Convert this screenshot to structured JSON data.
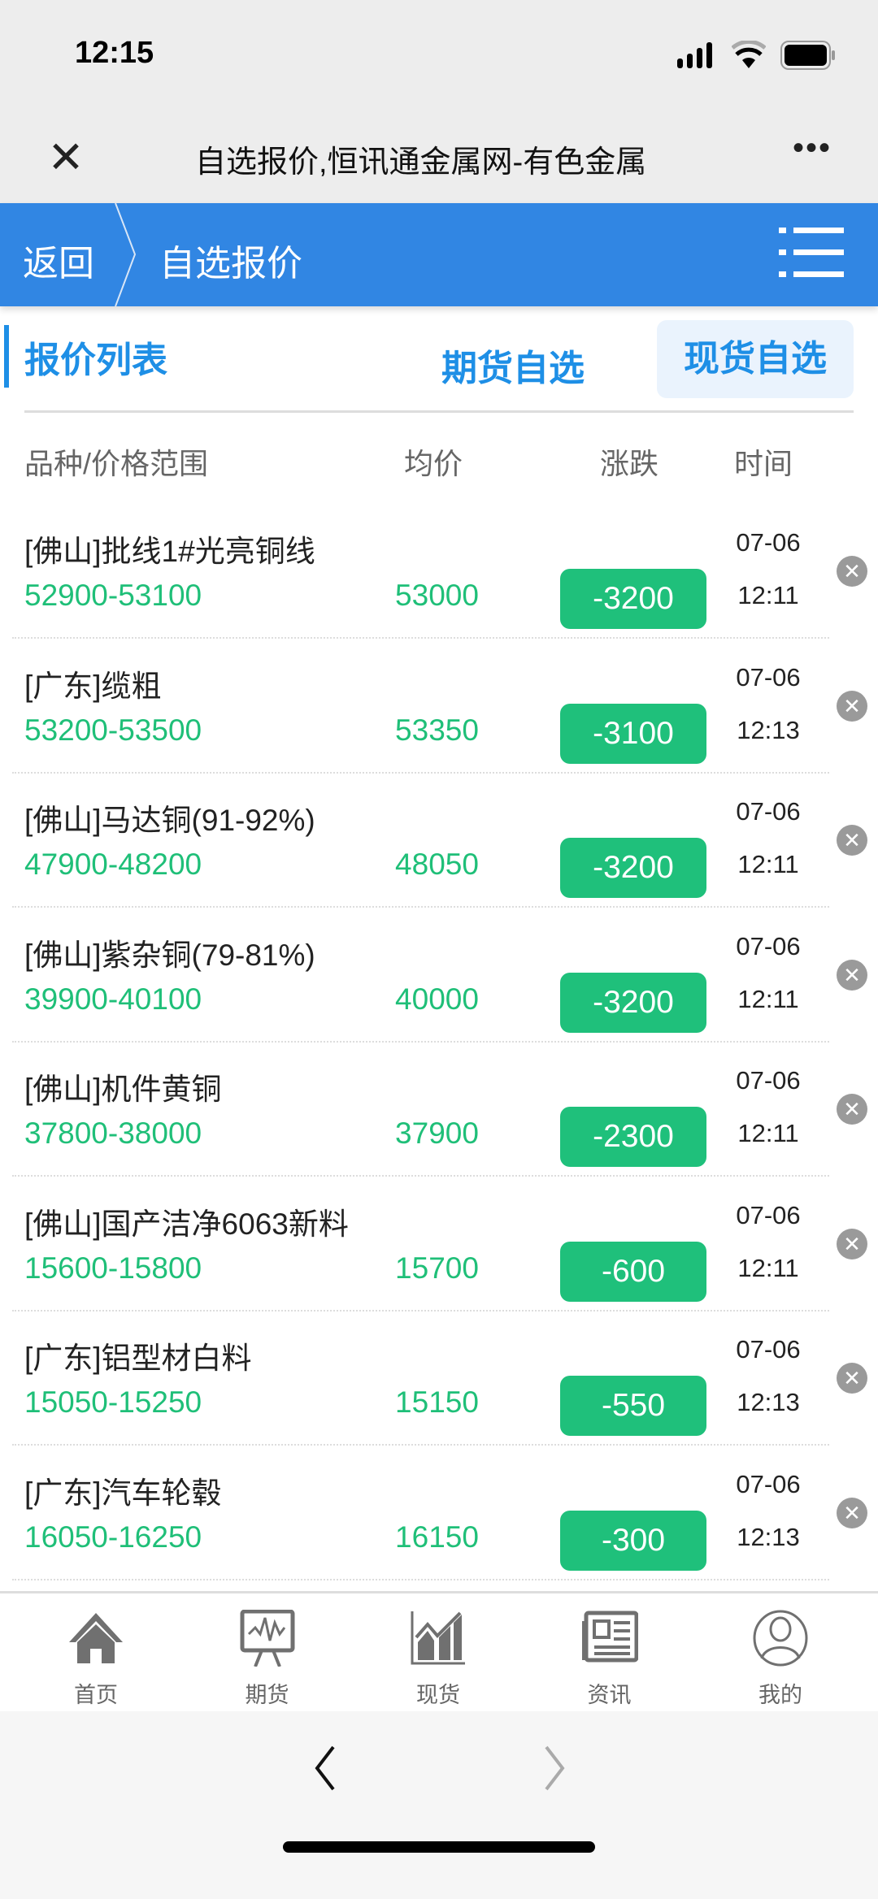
{
  "status_bar": {
    "time": "12:15"
  },
  "browser": {
    "title": "自选报价,恒讯通金属网-有色金属",
    "more": "•••"
  },
  "header": {
    "back_label": "返回",
    "breadcrumb": "自选报价",
    "accent": "#3186e3"
  },
  "section": {
    "title": "报价列表",
    "tabs": [
      {
        "label": "期货自选",
        "active": false
      },
      {
        "label": "现货自选",
        "active": true
      }
    ]
  },
  "columns": {
    "name": "品种/价格范围",
    "avg": "均价",
    "change": "涨跌",
    "time": "时间"
  },
  "rows": [
    {
      "name": "[佛山]批线1#光亮铜线",
      "range": "52900-53100",
      "avg": "53000",
      "change": "-3200",
      "date": "07-06",
      "time": "12:11"
    },
    {
      "name": "[广东]缆粗",
      "range": "53200-53500",
      "avg": "53350",
      "change": "-3100",
      "date": "07-06",
      "time": "12:13"
    },
    {
      "name": "[佛山]马达铜(91-92%)",
      "range": "47900-48200",
      "avg": "48050",
      "change": "-3200",
      "date": "07-06",
      "time": "12:11"
    },
    {
      "name": "[佛山]紫杂铜(79-81%)",
      "range": "39900-40100",
      "avg": "40000",
      "change": "-3200",
      "date": "07-06",
      "time": "12:11"
    },
    {
      "name": "[佛山]机件黄铜",
      "range": "37800-38000",
      "avg": "37900",
      "change": "-2300",
      "date": "07-06",
      "time": "12:11"
    },
    {
      "name": "[佛山]国产洁净6063新料",
      "range": "15600-15800",
      "avg": "15700",
      "change": "-600",
      "date": "07-06",
      "time": "12:11"
    },
    {
      "name": "[广东]铝型材白料",
      "range": "15050-15250",
      "avg": "15150",
      "change": "-550",
      "date": "07-06",
      "time": "12:13"
    },
    {
      "name": "[广东]汽车轮毂",
      "range": "16050-16250",
      "avg": "16150",
      "change": "-300",
      "date": "07-06",
      "time": "12:13"
    }
  ],
  "tabbar": [
    {
      "label": "首页",
      "icon": "home-icon"
    },
    {
      "label": "期货",
      "icon": "presentation-chart-icon"
    },
    {
      "label": "现货",
      "icon": "bar-chart-icon"
    },
    {
      "label": "资讯",
      "icon": "newspaper-icon"
    },
    {
      "label": "我的",
      "icon": "user-icon"
    }
  ],
  "colors": {
    "down": "#1fc07b",
    "tab_text": "#1e8fe6"
  }
}
